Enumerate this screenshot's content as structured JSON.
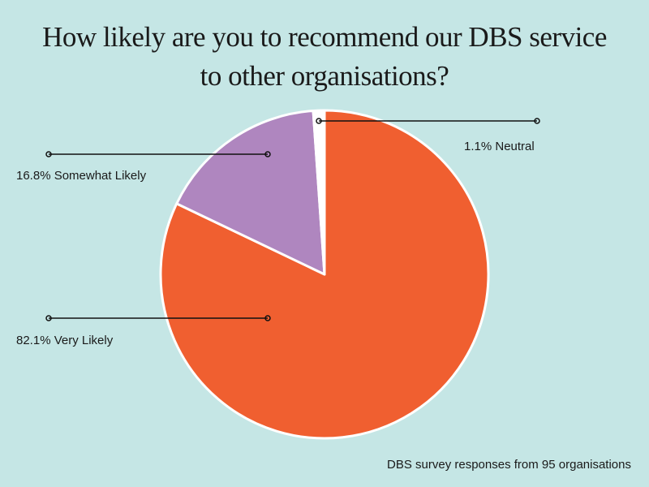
{
  "chart_data": {
    "type": "pie",
    "title_lines": [
      "How likely are you to recommend our DBS service",
      "to other organisations?"
    ],
    "slices": [
      {
        "label": "Very Likely",
        "value": 82.1,
        "display": "82.1% Very Likely",
        "color": "#f05f30"
      },
      {
        "label": "Somewhat Likely",
        "value": 16.8,
        "display": "16.8% Somewhat Likely",
        "color": "#af86bf"
      },
      {
        "label": "Neutral",
        "value": 1.1,
        "display": "1.1% Neutral",
        "color": "#ffffff"
      }
    ],
    "caption": "DBS survey responses from 95 organisations"
  }
}
